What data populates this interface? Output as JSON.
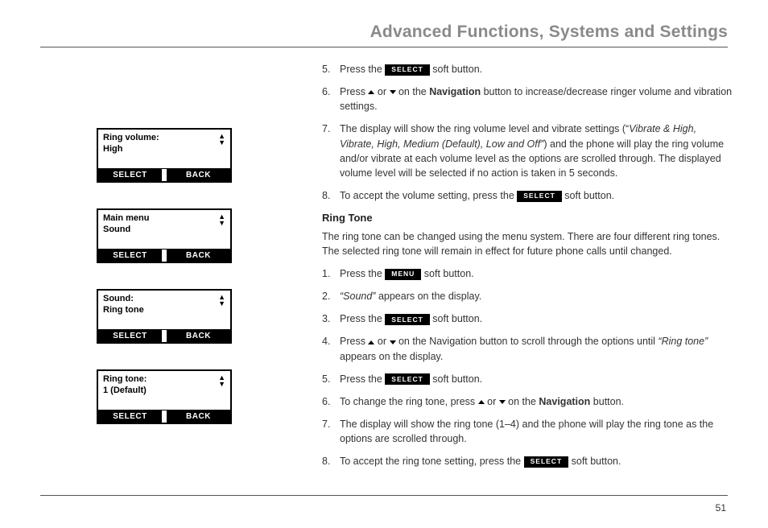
{
  "header": {
    "title": "Advanced Functions, Systems and Settings"
  },
  "screens": [
    {
      "line1": "Ring volume:",
      "line2": "High",
      "left_btn": "SELECT",
      "right_btn": "BACK"
    },
    {
      "line1": "Main menu",
      "line2": "Sound",
      "left_btn": "SELECT",
      "right_btn": "BACK"
    },
    {
      "line1": "Sound:",
      "line2": "Ring tone",
      "left_btn": "SELECT",
      "right_btn": "BACK"
    },
    {
      "line1": "Ring tone:",
      "line2": "1 (Default)",
      "left_btn": "SELECT",
      "right_btn": "BACK"
    }
  ],
  "buttons": {
    "select": "SELECT",
    "menu": "MENU"
  },
  "top_steps": {
    "s5": {
      "num": "5.",
      "pre": "Press the ",
      "post": " soft button."
    },
    "s6": {
      "num": "6.",
      "pre": "Press ",
      "mid": " or ",
      "post1": " on the ",
      "nav": "Navigation",
      "post2": " button to increase/decrease ringer volume and vibration settings."
    },
    "s7": {
      "num": "7.",
      "pre": "The display will show the ring volume level and vibrate settings (“",
      "italic": "Vibrate & High, Vibrate, High, Medium (Default), Low and Off”",
      "post": ") and the phone will play the ring volume and/or vibrate at each volume level as the options are scrolled through. The displayed volume level will be selected if no action is taken in 5 seconds."
    },
    "s8": {
      "num": "8.",
      "pre": "To accept the volume setting, press the ",
      "post": " soft button."
    }
  },
  "section": {
    "heading": "Ring Tone",
    "intro": "The ring tone can be changed using the menu system. There are four different ring tones. The selected ring tone will remain in effect for future phone calls until changed."
  },
  "ring_steps": {
    "s1": {
      "num": "1.",
      "pre": "Press the ",
      "post": " soft button."
    },
    "s2": {
      "num": "2.",
      "italic": "“Sound” ",
      "post": "appears on the display."
    },
    "s3": {
      "num": "3.",
      "pre": "Press the ",
      "post": " soft button."
    },
    "s4": {
      "num": "4.",
      "pre": "Press ",
      "mid": " or ",
      "post1": " on the Navigation button to scroll through the options until ",
      "italic": "“Ring tone” ",
      "post2": "appears on the display."
    },
    "s5": {
      "num": "5.",
      "pre": "Press the ",
      "post": " soft button."
    },
    "s6": {
      "num": "6.",
      "pre": "To change the ring tone, press ",
      "mid": " or ",
      "post1": " on the ",
      "nav": "Navigation",
      "post2": " button."
    },
    "s7": {
      "num": "7.",
      "text": "The display will show the ring tone (1–4) and the phone will play the ring tone as the options are scrolled through."
    },
    "s8": {
      "num": "8.",
      "pre": "To accept the ring tone setting, press the ",
      "post": " soft button."
    }
  },
  "page_number": "51",
  "colors": {
    "text": "#333333",
    "header_text": "#8a8a8a",
    "rule": "#555555",
    "btn_bg": "#000000",
    "btn_fg": "#ffffff",
    "bg": "#ffffff"
  }
}
